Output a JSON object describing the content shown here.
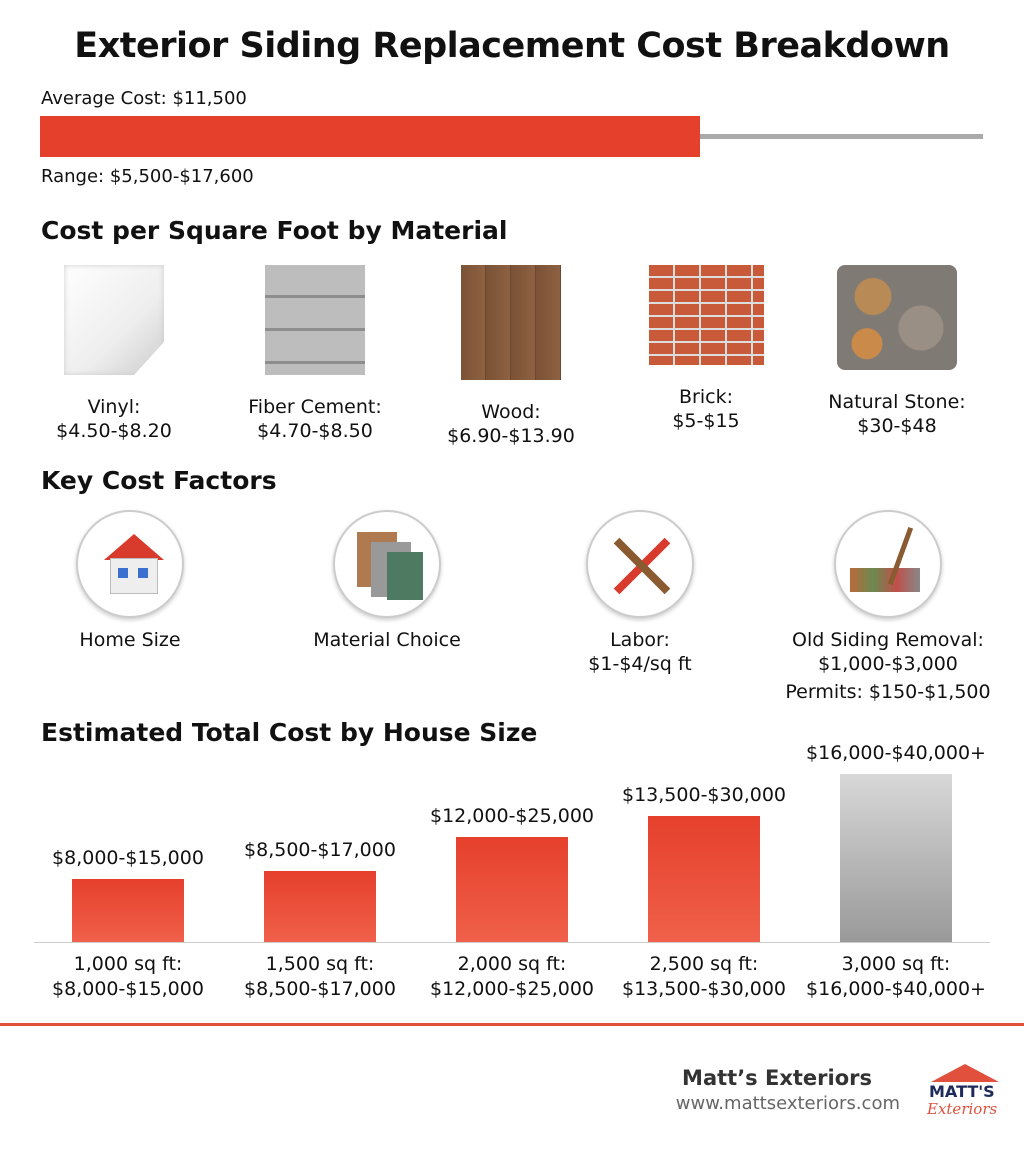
{
  "title": "Exterior Siding Replacement Cost Breakdown",
  "average": {
    "label": "Average Cost: $11,500",
    "range": "Range: $5,500-$17,600",
    "fill_fraction": 0.7,
    "fill_color": "#e5402c",
    "track_color": "#aaaaaa"
  },
  "materials": {
    "heading": "Cost per Square Foot by Material",
    "items": [
      {
        "name": "Vinyl:",
        "price": "$4.50-$8.20"
      },
      {
        "name": "Fiber Cement:",
        "price": "$4.70-$8.50"
      },
      {
        "name": "Wood:",
        "price": "$6.90-$13.90"
      },
      {
        "name": "Brick:",
        "price": "$5-$15"
      },
      {
        "name": "Natural Stone:",
        "price": "$30-$48"
      }
    ]
  },
  "factors": {
    "heading": "Key Cost Factors",
    "items": [
      {
        "label": "Home Size"
      },
      {
        "label": "Material Choice"
      },
      {
        "label": "Labor:",
        "sub": "$1-$4/sq ft"
      },
      {
        "label": "Old Siding Removal:",
        "sub": "$1,000-$3,000",
        "extra": "Permits: $150-$1,500"
      }
    ]
  },
  "chart_data": {
    "type": "bar",
    "title": "Estimated Total Cost by House Size",
    "categories": [
      "1,000 sq ft:",
      "1,500 sq ft:",
      "2,000 sq ft:",
      "2,500 sq ft:",
      "3,000 sq ft:"
    ],
    "ranges": [
      "$8,000-$15,000",
      "$8,500-$17,000",
      "$12,000-$25,000",
      "$13,500-$30,000",
      "$16,000-$40,000+"
    ],
    "low": [
      8000,
      8500,
      12000,
      13500,
      16000
    ],
    "high": [
      15000,
      17000,
      25000,
      30000,
      40000
    ],
    "colors": [
      "#e5402c",
      "#e5402c",
      "#e5402c",
      "#e5402c",
      "#b8b8b8"
    ]
  },
  "footer": {
    "company": "Matt’s Exteriors",
    "url": "www.mattsexteriors.com",
    "logo_text": "MATT'S Exteriors"
  }
}
